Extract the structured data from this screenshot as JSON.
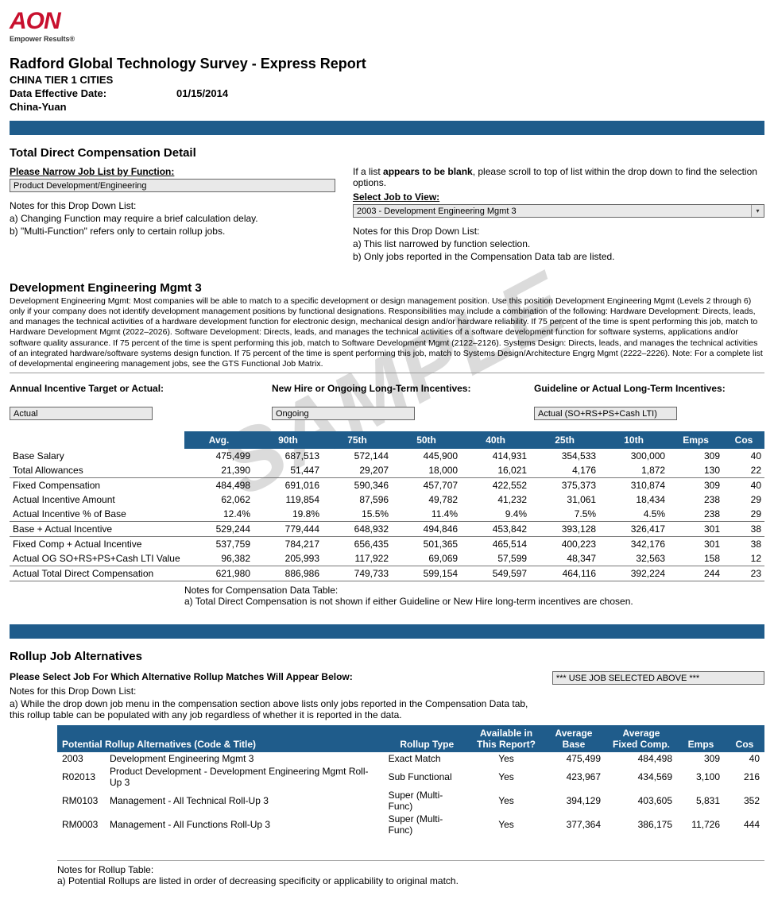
{
  "brand": {
    "logo": "AON",
    "tagline": "Empower Results®"
  },
  "report": {
    "title": "Radford Global Technology Survey - Express Report",
    "region": "CHINA TIER 1 CITIES",
    "effective_label": "Data Effective Date:",
    "effective_date": "01/15/2014",
    "currency": "China-Yuan"
  },
  "colors": {
    "bar": "#1f5c8b",
    "accent": "#c8102e"
  },
  "watermark": "SAMPLE",
  "detail_section": {
    "heading": "Total Direct Compensation Detail",
    "hint_prefix": "If a list ",
    "hint_bold": "appears to be blank",
    "hint_suffix": ", please scroll to top of list within the drop down to find the selection options.",
    "function_label": "Please Narrow Job List by Function:",
    "function_value": "Product Development/Engineering",
    "job_label": "Select Job to View:",
    "job_value": "2003 - Development Engineering Mgmt  3",
    "left_notes_h": "Notes for this Drop Down List:",
    "left_notes": [
      "a) Changing Function may require a brief calculation delay.",
      "b) \"Multi-Function\" refers only to certain rollup jobs."
    ],
    "right_notes_h": "Notes for this Drop Down List:",
    "right_notes": [
      "a) This list narrowed by function selection.",
      "b) Only jobs reported in the Compensation Data tab are listed."
    ]
  },
  "job": {
    "title": "Development Engineering Mgmt  3",
    "desc": "Development Engineering Mgmt: Most companies will be able to match to a specific development or design management position. Use this position Development Engineering Mgmt (Levels 2 through 6) only if your company does not identify development management positions by functional designations. Responsibilities may include a combination of the following: Hardware Development: Directs, leads, and manages the technical activities of a hardware development function for electronic design, mechanical design and/or hardware reliability. If 75 percent of the time is spent performing this job, match to Hardware Development Mgmt (2022–2026). Software Development: Directs, leads, and manages the technical activities of a software development function for software systems, applications and/or software quality assurance. If 75 percent of the time is spent performing this job, match to Software Development Mgmt (2122–2126). Systems Design: Directs, leads, and manages the technical activities of an integrated hardware/software systems design function. If 75 percent of the time is spent performing this job, match to Systems Design/Architecture Engrg Mgmt (2222–2226). Note: For a complete list of developmental engineering management jobs, see the GTS Functional Job Matrix."
  },
  "incentives": {
    "col1_label": "Annual Incentive Target or Actual:",
    "col1_value": "Actual",
    "col2_label": "New Hire or Ongoing Long-Term Incentives:",
    "col2_value": "Ongoing",
    "col3_label": "Guideline or Actual Long-Term Incentives:",
    "col3_value": "Actual (SO+RS+PS+Cash LTI)"
  },
  "comp_table": {
    "headers": [
      "",
      "Avg.",
      "90th",
      "75th",
      "50th",
      "40th",
      "25th",
      "10th",
      "Emps",
      "Cos"
    ],
    "rows": [
      {
        "label": "Base Salary",
        "vals": [
          "475,499",
          "687,513",
          "572,144",
          "445,900",
          "414,931",
          "354,533",
          "300,000",
          "309",
          "40"
        ],
        "rule": false
      },
      {
        "label": "Total Allowances",
        "vals": [
          "21,390",
          "51,447",
          "29,207",
          "18,000",
          "16,021",
          "4,176",
          "1,872",
          "130",
          "22"
        ],
        "rule": true
      },
      {
        "label": "Fixed Compensation",
        "vals": [
          "484,498",
          "691,016",
          "590,346",
          "457,707",
          "422,552",
          "375,373",
          "310,874",
          "309",
          "40"
        ],
        "rule": false
      },
      {
        "label": "Actual Incentive Amount",
        "vals": [
          "62,062",
          "119,854",
          "87,596",
          "49,782",
          "41,232",
          "31,061",
          "18,434",
          "238",
          "29"
        ],
        "rule": false
      },
      {
        "label": "Actual Incentive % of Base",
        "vals": [
          "12.4%",
          "19.8%",
          "15.5%",
          "11.4%",
          "9.4%",
          "7.5%",
          "4.5%",
          "238",
          "29"
        ],
        "rule": true
      },
      {
        "label": "Base + Actual Incentive",
        "vals": [
          "529,244",
          "779,444",
          "648,932",
          "494,846",
          "453,842",
          "393,128",
          "326,417",
          "301",
          "38"
        ],
        "rule": true
      },
      {
        "label": "Fixed Comp + Actual Incentive",
        "vals": [
          "537,759",
          "784,217",
          "656,435",
          "501,365",
          "465,514",
          "400,223",
          "342,176",
          "301",
          "38"
        ],
        "rule": false
      },
      {
        "label": "Actual OG SO+RS+PS+Cash LTI Value",
        "vals": [
          "96,382",
          "205,993",
          "117,922",
          "69,069",
          "57,599",
          "48,347",
          "32,563",
          "158",
          "12"
        ],
        "rule": true
      },
      {
        "label": "Actual Total Direct Compensation",
        "vals": [
          "621,980",
          "886,986",
          "749,733",
          "599,154",
          "549,597",
          "464,116",
          "392,224",
          "244",
          "23"
        ],
        "rule": true
      }
    ],
    "notes_h": "Notes for Compensation Data Table:",
    "notes": [
      "a) Total Direct Compensation is not shown if either Guideline or New Hire long-term incentives are chosen."
    ]
  },
  "rollup": {
    "heading": "Rollup Job Alternatives",
    "prompt": "Please Select Job For Which Alternative Rollup Matches Will Appear Below:",
    "field_value": "*** USE JOB SELECTED ABOVE ***",
    "notes_h": "Notes for this Drop Down List:",
    "notes_line": "a) While the drop down job menu in the compensation section above lists only jobs reported in the Compensation Data tab, this rollup table can be populated with any job regardless of whether it is reported in the data.",
    "headers": {
      "code_title": "Potential Rollup Alternatives (Code & Title)",
      "type": "Rollup Type",
      "avail": "Available in This Report?",
      "base": "Average Base",
      "fixed": "Average Fixed Comp.",
      "emps": "Emps",
      "cos": "Cos"
    },
    "rows": [
      {
        "code": "2003",
        "title": "Development Engineering Mgmt  3",
        "type": "Exact Match",
        "avail": "Yes",
        "base": "475,499",
        "fixed": "484,498",
        "emps": "309",
        "cos": "40"
      },
      {
        "code": "R02013",
        "title": "Product Development - Development Engineering Mgmt Roll-Up 3",
        "type": "Sub Functional",
        "avail": "Yes",
        "base": "423,967",
        "fixed": "434,569",
        "emps": "3,100",
        "cos": "216"
      },
      {
        "code": "RM0103",
        "title": "Management - All Technical Roll-Up 3",
        "type": "Super (Multi-Func)",
        "avail": "Yes",
        "base": "394,129",
        "fixed": "403,605",
        "emps": "5,831",
        "cos": "352"
      },
      {
        "code": "RM0003",
        "title": "Management - All Functions Roll-Up 3",
        "type": "Super (Multi-Func)",
        "avail": "Yes",
        "base": "377,364",
        "fixed": "386,175",
        "emps": "11,726",
        "cos": "444"
      }
    ],
    "footer_h": "Notes for Rollup Table:",
    "footer_line": "a) Potential Rollups are listed in order of decreasing specificity or applicability to original match."
  }
}
